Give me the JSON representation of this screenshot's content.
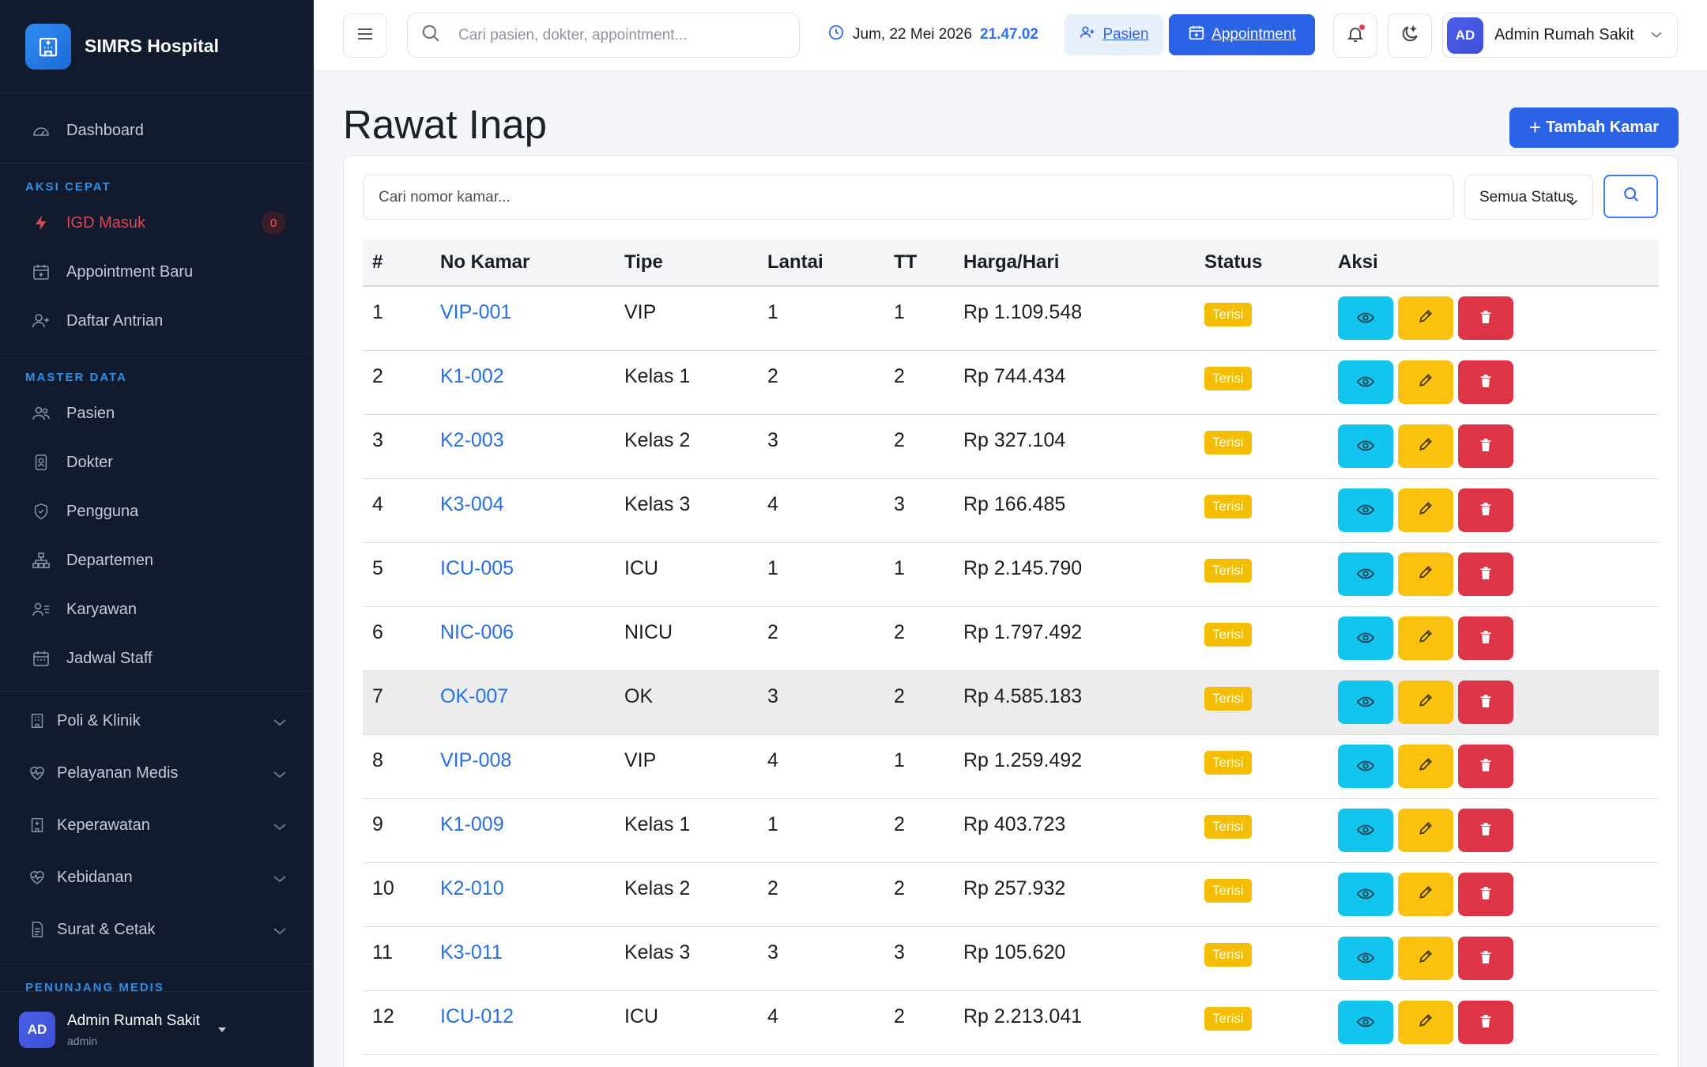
{
  "brand": {
    "name": "SIMRS Hospital"
  },
  "sidebar": {
    "dashboard": "Dashboard",
    "section_quick": "AKSI CEPAT",
    "igd": "IGD Masuk",
    "igd_count": "0",
    "appointment_new": "Appointment Baru",
    "queue": "Daftar Antrian",
    "section_master": "MASTER DATA",
    "pasien": "Pasien",
    "dokter": "Dokter",
    "pengguna": "Pengguna",
    "departemen": "Departemen",
    "karyawan": "Karyawan",
    "jadwal": "Jadwal Staff",
    "poli": "Poli & Klinik",
    "pelayanan": "Pelayanan Medis",
    "keperawatan": "Keperawatan",
    "kebidanan": "Kebidanan",
    "surat": "Surat & Cetak",
    "section_penunjang": "PENUNJANG MEDIS",
    "user_initials": "AD",
    "user_name": "Admin Rumah Sakit",
    "user_role": "admin"
  },
  "topbar": {
    "search_placeholder": "Cari pasien, dokter, appointment...",
    "date": "Jum, 22 Mei 2026",
    "time": "21.47.02",
    "btn_pasien": "Pasien",
    "btn_appointment": "Appointment",
    "user_initials": "AD",
    "user_name": "Admin Rumah Sakit"
  },
  "page": {
    "title": "Rawat Inap",
    "add_button": "Tambah Kamar",
    "search_placeholder": "Cari nomor kamar...",
    "status_filter": "Semua Status"
  },
  "table": {
    "headers": [
      "#",
      "No Kamar",
      "Tipe",
      "Lantai",
      "TT",
      "Harga/Hari",
      "Status",
      "Aksi"
    ],
    "rows": [
      {
        "no": "1",
        "kamar": "VIP-001",
        "tipe": "VIP",
        "lantai": "1",
        "tt": "1",
        "harga": "Rp 1.109.548",
        "status": "Terisi"
      },
      {
        "no": "2",
        "kamar": "K1-002",
        "tipe": "Kelas 1",
        "lantai": "2",
        "tt": "2",
        "harga": "Rp 744.434",
        "status": "Terisi"
      },
      {
        "no": "3",
        "kamar": "K2-003",
        "tipe": "Kelas 2",
        "lantai": "3",
        "tt": "2",
        "harga": "Rp 327.104",
        "status": "Terisi"
      },
      {
        "no": "4",
        "kamar": "K3-004",
        "tipe": "Kelas 3",
        "lantai": "4",
        "tt": "3",
        "harga": "Rp 166.485",
        "status": "Terisi"
      },
      {
        "no": "5",
        "kamar": "ICU-005",
        "tipe": "ICU",
        "lantai": "1",
        "tt": "1",
        "harga": "Rp 2.145.790",
        "status": "Terisi"
      },
      {
        "no": "6",
        "kamar": "NIC-006",
        "tipe": "NICU",
        "lantai": "2",
        "tt": "2",
        "harga": "Rp 1.797.492",
        "status": "Terisi"
      },
      {
        "no": "7",
        "kamar": "OK-007",
        "tipe": "OK",
        "lantai": "3",
        "tt": "2",
        "harga": "Rp 4.585.183",
        "status": "Terisi"
      },
      {
        "no": "8",
        "kamar": "VIP-008",
        "tipe": "VIP",
        "lantai": "4",
        "tt": "1",
        "harga": "Rp 1.259.492",
        "status": "Terisi"
      },
      {
        "no": "9",
        "kamar": "K1-009",
        "tipe": "Kelas 1",
        "lantai": "1",
        "tt": "2",
        "harga": "Rp 403.723",
        "status": "Terisi"
      },
      {
        "no": "10",
        "kamar": "K2-010",
        "tipe": "Kelas 2",
        "lantai": "2",
        "tt": "2",
        "harga": "Rp 257.932",
        "status": "Terisi"
      },
      {
        "no": "11",
        "kamar": "K3-011",
        "tipe": "Kelas 3",
        "lantai": "3",
        "tt": "3",
        "harga": "Rp 105.620",
        "status": "Terisi"
      },
      {
        "no": "12",
        "kamar": "ICU-012",
        "tipe": "ICU",
        "lantai": "4",
        "tt": "2",
        "harga": "Rp 2.213.041",
        "status": "Terisi"
      }
    ]
  },
  "colors": {
    "sidebar_bg": "#121a2e",
    "primary": "#2a63e6",
    "status_occupied": "#f5bd00",
    "view": "#12c5ef",
    "edit": "#fbc10f",
    "delete": "#dd3545"
  }
}
